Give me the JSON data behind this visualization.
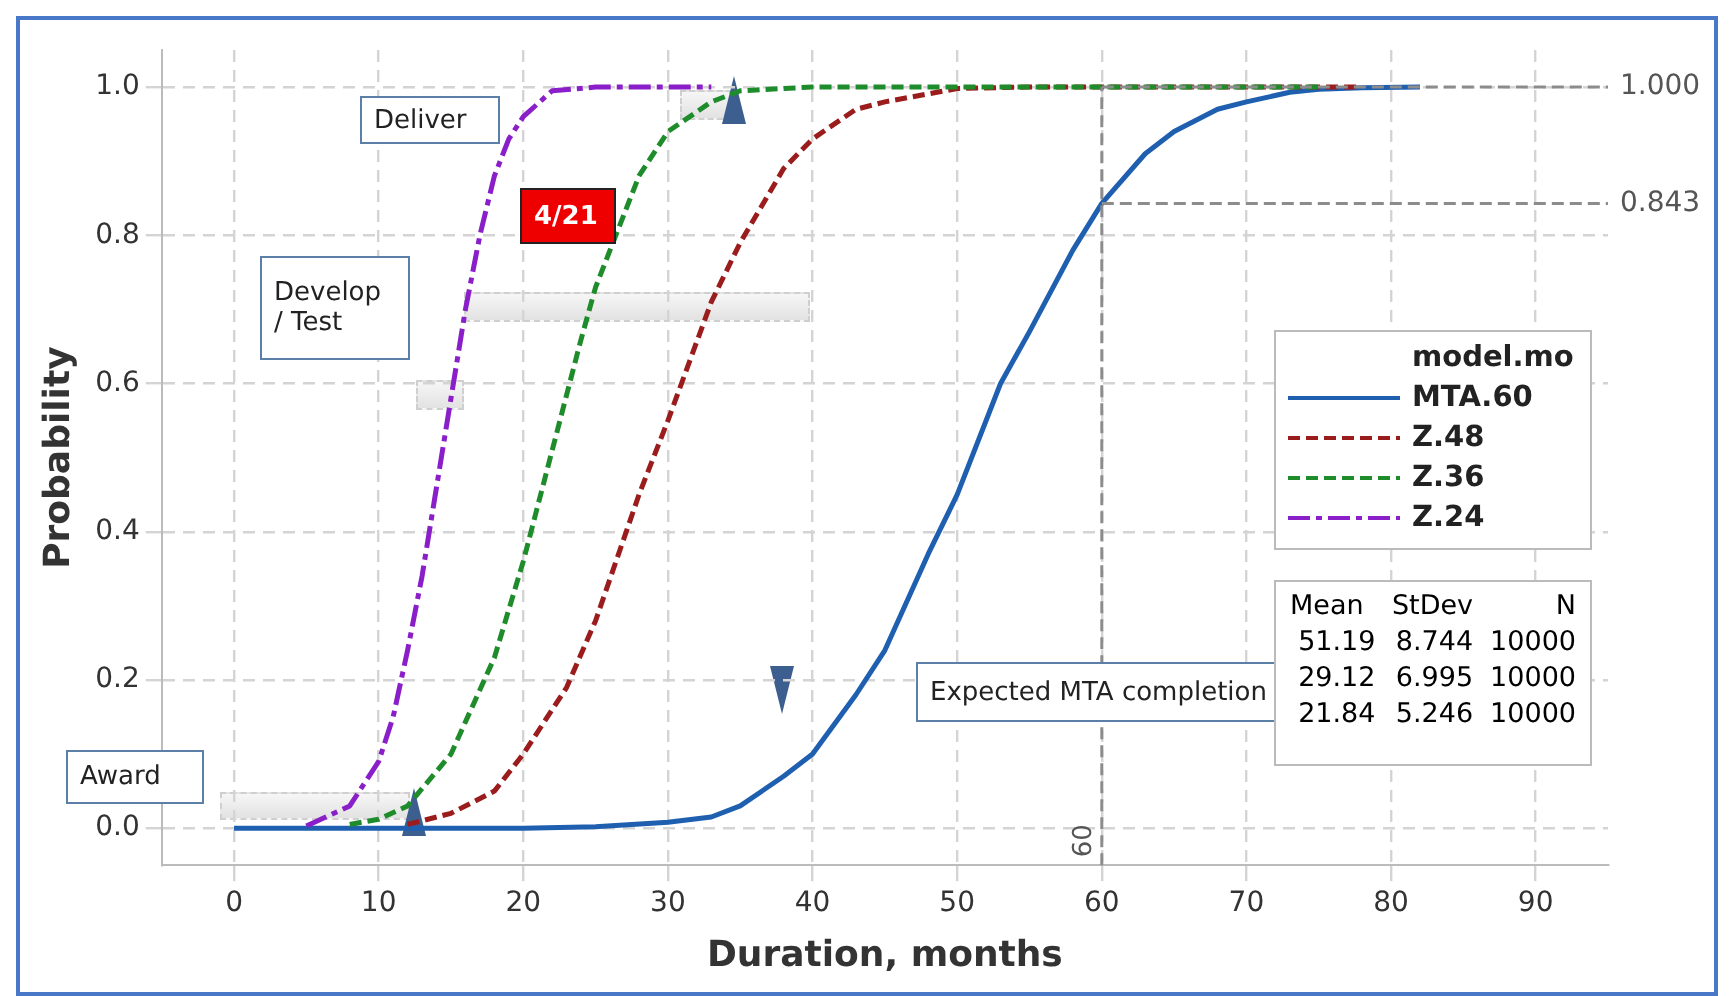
{
  "chart_data": {
    "type": "line",
    "xlabel": "Duration, months",
    "ylabel": "Probability",
    "legend_title": "model.mo",
    "legend": "right",
    "grid": true,
    "xlim": [
      -5,
      95
    ],
    "xticks": [
      0,
      10,
      20,
      30,
      40,
      50,
      60,
      70,
      80,
      90
    ],
    "ylim": [
      -0.05,
      1.05
    ],
    "yticks": [
      {
        "value": 0,
        "label": "0.0"
      },
      {
        "value": 0.2,
        "label": "0.2"
      },
      {
        "value": 0.4,
        "label": "0.4"
      },
      {
        "value": 0.6,
        "label": "0.6"
      },
      {
        "value": 0.8,
        "label": "0.8"
      },
      {
        "value": 1,
        "label": "1.0"
      }
    ],
    "series": [
      {
        "name": "MTA.60",
        "color": "#1f5fb0",
        "line_style": "solid",
        "x": [
          0,
          20,
          25,
          30,
          33,
          35,
          38,
          40,
          43,
          45,
          48,
          50,
          53,
          55,
          58,
          60,
          63,
          65,
          68,
          70,
          73,
          75,
          78,
          82
        ],
        "values": [
          0,
          0,
          0.002,
          0.008,
          0.015,
          0.03,
          0.07,
          0.1,
          0.18,
          0.24,
          0.37,
          0.45,
          0.6,
          0.67,
          0.78,
          0.843,
          0.91,
          0.94,
          0.97,
          0.98,
          0.993,
          0.997,
          0.999,
          1
        ]
      },
      {
        "name": "Z.48",
        "color": "#9b1c1c",
        "line_style": "dashed",
        "x": [
          12,
          15,
          18,
          20,
          23,
          25,
          28,
          30,
          33,
          35,
          38,
          40,
          43,
          45,
          50,
          55,
          60,
          70,
          78
        ],
        "values": [
          0.005,
          0.02,
          0.05,
          0.1,
          0.19,
          0.28,
          0.45,
          0.55,
          0.71,
          0.79,
          0.89,
          0.93,
          0.97,
          0.98,
          0.998,
          1,
          1,
          1,
          1
        ]
      },
      {
        "name": "Z.36",
        "color": "#1e8c2a",
        "line_style": "dashed",
        "x": [
          8,
          10,
          12,
          15,
          18,
          20,
          22,
          24,
          25,
          28,
          30,
          33,
          35,
          40,
          50,
          60,
          75
        ],
        "values": [
          0.005,
          0.012,
          0.03,
          0.1,
          0.23,
          0.36,
          0.51,
          0.66,
          0.73,
          0.88,
          0.94,
          0.98,
          0.995,
          1,
          1,
          1,
          1
        ]
      },
      {
        "name": "Z.24",
        "color": "#8a1fc9",
        "line_style": "dashdot",
        "x": [
          5,
          8,
          9,
          10,
          11,
          12,
          13,
          14,
          15,
          16,
          17,
          18,
          19,
          20,
          22,
          25,
          33
        ],
        "values": [
          0.003,
          0.03,
          0.06,
          0.09,
          0.15,
          0.24,
          0.34,
          0.46,
          0.58,
          0.7,
          0.8,
          0.88,
          0.93,
          0.96,
          0.995,
          1,
          1
        ]
      }
    ],
    "ref_lines": [
      {
        "axis": "y",
        "value": 1,
        "label": "1.000",
        "color": "#8c8c8c",
        "line_style": "dashed"
      },
      {
        "axis": "y",
        "value": 0.843,
        "label": "0.843",
        "color": "#8c8c8c",
        "line_style": "dashed"
      },
      {
        "axis": "x",
        "value": 60,
        "label": "60",
        "color": "#8c8c8c",
        "line_style": "dashed"
      }
    ],
    "annotations": [
      "Deliver",
      "4/21",
      "Develop\n/ Test",
      "Expected MTA completion",
      "Award",
      "Mean StDev N\n51.19 8.744 10000\n29.12 6.995 10000\n21.84 5.246 10000"
    ]
  }
}
